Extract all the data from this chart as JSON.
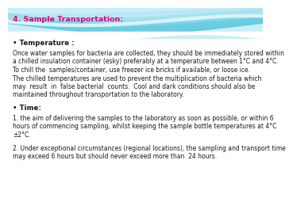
{
  "title": "4. Sample Transportation:",
  "title_color": "#e6007e",
  "bg_color": "#ffffff",
  "bullet_temp": "• Temperature :",
  "para1_lines": [
    "Once water samples for bacteria are collected, they should be immediately stored within",
    "a chilled insulation container (esky) preferably at a temperature between 1°C and 4°C.",
    "To chill the  samples/container, use freezer ice bricks if available, or loose ice.",
    "The chilled temperatures are used to prevent the multiplication of bacteria which",
    "may  result  in  false bacterial  counts.  Cool and dark conditions should also be",
    "maintained throughout transportation to the laboratory."
  ],
  "bullet_time": "• Time:",
  "para2_lines": [
    "1. the aim of delivering the samples to the laboratory as soon as possible, or within 6",
    "hours of commencing sampling, whilst keeping the sample bottle temperatures at 4°C",
    "±2°C."
  ],
  "para3_lines": [
    "2. Under exceptional circumstances (regional locations), the sampling and transport time",
    "may exceed 6 hours but should never exceed more than  24 hours."
  ],
  "font_size_title": 6.8,
  "font_size_body": 5.5,
  "font_size_bullet": 6.2,
  "text_color": "#1a1a1a",
  "wave_band1_color": "#b3e5f0",
  "wave_band2_color": "#7dd4e8",
  "wave_band3_color": "#a0dcea",
  "wave_white_color": "#e8f7fb"
}
